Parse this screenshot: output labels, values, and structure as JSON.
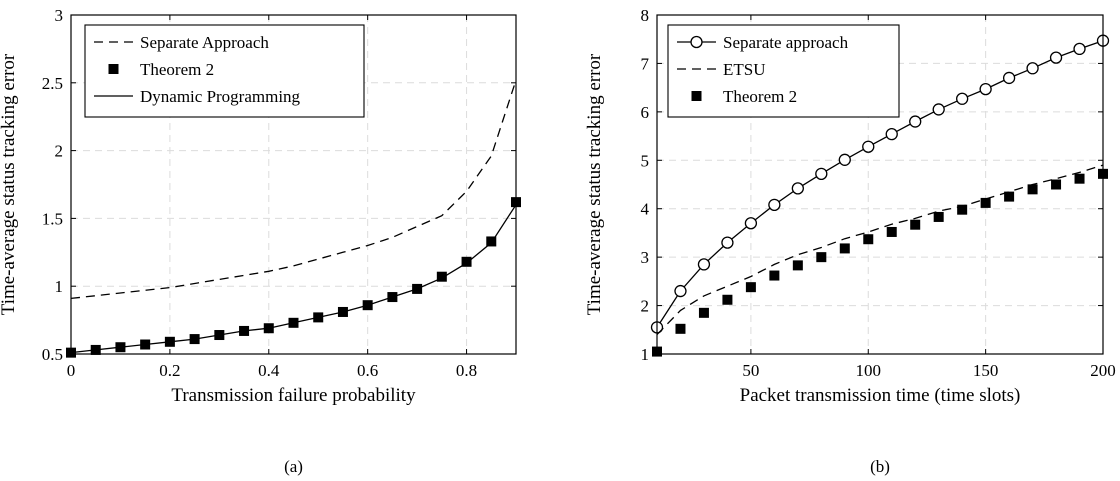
{
  "chart_data": [
    {
      "type": "line",
      "caption": "(a)",
      "xlabel": "Transmission failure probability",
      "ylabel": "Time-average status tracking error",
      "xlim": [
        0,
        0.9
      ],
      "ylim": [
        0.5,
        3
      ],
      "xticks": [
        "0",
        "0.2",
        "0.4",
        "0.6",
        "0.8"
      ],
      "yticks": [
        "0.5",
        "1",
        "1.5",
        "2",
        "2.5",
        "3"
      ],
      "grid": true,
      "legend_position": "top-left",
      "series": [
        {
          "name": "Separate Approach",
          "style": "dashed",
          "x": [
            0,
            0.05,
            0.1,
            0.15,
            0.2,
            0.25,
            0.3,
            0.35,
            0.4,
            0.45,
            0.5,
            0.55,
            0.6,
            0.65,
            0.7,
            0.75,
            0.8,
            0.85,
            0.9
          ],
          "y": [
            0.91,
            0.93,
            0.95,
            0.97,
            0.99,
            1.02,
            1.05,
            1.08,
            1.11,
            1.15,
            1.2,
            1.25,
            1.3,
            1.36,
            1.44,
            1.52,
            1.7,
            1.96,
            2.52
          ]
        },
        {
          "name": "Theorem 2",
          "style": "square-markers",
          "x": [
            0,
            0.05,
            0.1,
            0.15,
            0.2,
            0.25,
            0.3,
            0.35,
            0.4,
            0.45,
            0.5,
            0.55,
            0.6,
            0.65,
            0.7,
            0.75,
            0.8,
            0.85,
            0.9
          ],
          "y": [
            0.51,
            0.53,
            0.55,
            0.57,
            0.59,
            0.61,
            0.64,
            0.67,
            0.69,
            0.73,
            0.77,
            0.81,
            0.86,
            0.92,
            0.98,
            1.07,
            1.18,
            1.33,
            1.62
          ]
        },
        {
          "name": "Dynamic Programming",
          "style": "solid",
          "x": [
            0,
            0.05,
            0.1,
            0.15,
            0.2,
            0.25,
            0.3,
            0.35,
            0.4,
            0.45,
            0.5,
            0.55,
            0.6,
            0.65,
            0.7,
            0.75,
            0.8,
            0.85,
            0.9
          ],
          "y": [
            0.51,
            0.53,
            0.55,
            0.57,
            0.59,
            0.61,
            0.64,
            0.67,
            0.69,
            0.73,
            0.77,
            0.81,
            0.86,
            0.92,
            0.98,
            1.06,
            1.17,
            1.32,
            1.6
          ]
        }
      ]
    },
    {
      "type": "line",
      "caption": "(b)",
      "xlabel": "Packet transmission time (time slots)",
      "ylabel": "Time-average status tracking error",
      "xlim": [
        10,
        200
      ],
      "ylim": [
        1,
        8
      ],
      "xticks": [
        "50",
        "100",
        "150",
        "200"
      ],
      "yticks": [
        "1",
        "2",
        "3",
        "4",
        "5",
        "6",
        "7",
        "8"
      ],
      "grid": true,
      "legend_position": "top-left",
      "series": [
        {
          "name": "Separate approach",
          "style": "solid-circle-markers",
          "x": [
            10,
            20,
            30,
            40,
            50,
            60,
            70,
            80,
            90,
            100,
            110,
            120,
            130,
            140,
            150,
            160,
            170,
            180,
            190,
            200
          ],
          "y": [
            1.55,
            2.3,
            2.85,
            3.3,
            3.7,
            4.08,
            4.42,
            4.72,
            5.01,
            5.28,
            5.54,
            5.8,
            6.05,
            6.27,
            6.47,
            6.7,
            6.9,
            7.12,
            7.3,
            7.47
          ]
        },
        {
          "name": "ETSU",
          "style": "dashed",
          "x": [
            10,
            20,
            30,
            40,
            50,
            60,
            70,
            80,
            90,
            100,
            110,
            120,
            130,
            140,
            150,
            160,
            170,
            180,
            190,
            200
          ],
          "y": [
            1.4,
            1.9,
            2.2,
            2.4,
            2.6,
            2.85,
            3.05,
            3.2,
            3.38,
            3.52,
            3.68,
            3.8,
            3.95,
            4.05,
            4.2,
            4.35,
            4.5,
            4.62,
            4.75,
            4.9
          ]
        },
        {
          "name": "Theorem 2",
          "style": "square-markers",
          "x": [
            10,
            20,
            30,
            40,
            50,
            60,
            70,
            80,
            90,
            100,
            110,
            120,
            130,
            140,
            150,
            160,
            170,
            180,
            190,
            200
          ],
          "y": [
            1.05,
            1.52,
            1.85,
            2.12,
            2.38,
            2.62,
            2.83,
            3.0,
            3.18,
            3.37,
            3.52,
            3.67,
            3.83,
            3.98,
            4.12,
            4.25,
            4.4,
            4.5,
            4.62,
            4.72
          ]
        }
      ]
    }
  ]
}
